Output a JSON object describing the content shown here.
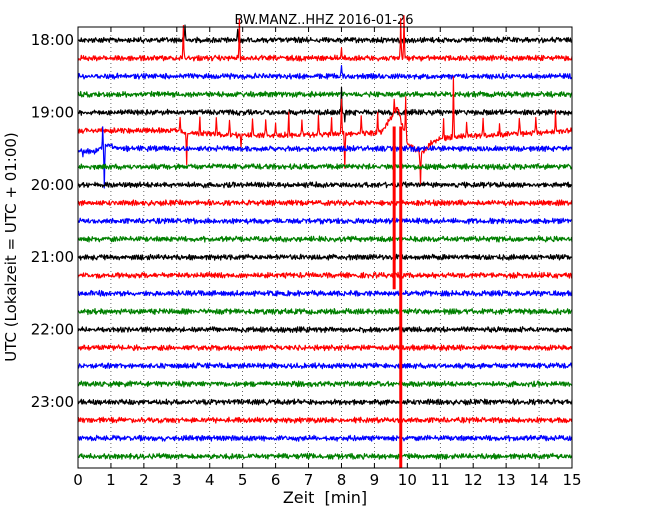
{
  "chart_data": {
    "type": "line",
    "title": "BW.MANZ..HHZ 2016-01-26",
    "xlabel": "Zeit  [min]",
    "ylabel": "UTC (Lokalzeit = UTC + 01:00)",
    "xlim": [
      0,
      15
    ],
    "x_ticks": [
      "0",
      "1",
      "2",
      "3",
      "4",
      "5",
      "6",
      "7",
      "8",
      "9",
      "10",
      "11",
      "12",
      "13",
      "14",
      "15"
    ],
    "y_ticks": [
      "18:00",
      "19:00",
      "20:00",
      "21:00",
      "22:00",
      "23:00"
    ],
    "grid": "vertical dotted",
    "trace_colors": [
      "#000000",
      "#ff0000",
      "#0000ff",
      "#008000"
    ],
    "series": [
      {
        "start": "18:00",
        "color": "#000000",
        "spikes": [
          {
            "x": 3.25,
            "dy": -14
          },
          {
            "x": 4.85,
            "dy": -12
          }
        ]
      },
      {
        "start": "18:15",
        "color": "#ff0000",
        "spikes": [
          {
            "x": 3.2,
            "dy": -34
          },
          {
            "x": 4.9,
            "dy": -36
          },
          {
            "x": 8.0,
            "dy": -12
          },
          {
            "x": 9.8,
            "dy": -40
          },
          {
            "x": 9.9,
            "dy": -40
          }
        ]
      },
      {
        "start": "18:30",
        "color": "#0000ff",
        "spikes": [
          {
            "x": 8.0,
            "dy": -10
          }
        ]
      },
      {
        "start": "18:45",
        "color": "#008000",
        "spikes": []
      },
      {
        "start": "19:00",
        "color": "#000000",
        "spikes": [
          {
            "x": 8.0,
            "dy": -24
          },
          {
            "x": 8.1,
            "dy": 10
          }
        ]
      },
      {
        "start": "19:15",
        "color": "#ff0000",
        "spikes": [
          {
            "x": 3.1,
            "dy": -14
          },
          {
            "x": 3.3,
            "dy": 30
          },
          {
            "x": 3.7,
            "dy": -14
          },
          {
            "x": 4.2,
            "dy": -18
          },
          {
            "x": 4.6,
            "dy": -14
          },
          {
            "x": 4.95,
            "dy": 10
          },
          {
            "x": 5.3,
            "dy": -16
          },
          {
            "x": 5.7,
            "dy": -18
          },
          {
            "x": 6.0,
            "dy": -14
          },
          {
            "x": 6.4,
            "dy": -20
          },
          {
            "x": 6.8,
            "dy": -14
          },
          {
            "x": 7.3,
            "dy": -18
          },
          {
            "x": 7.7,
            "dy": -16
          },
          {
            "x": 8.0,
            "dy": -36
          },
          {
            "x": 8.1,
            "dy": 34
          },
          {
            "x": 8.6,
            "dy": -16
          },
          {
            "x": 9.1,
            "dy": -18
          },
          {
            "x": 9.6,
            "dy": -14
          },
          {
            "x": 9.95,
            "dy": -40
          },
          {
            "x": 10.4,
            "dy": 30
          },
          {
            "x": 11.1,
            "dy": -18
          },
          {
            "x": 11.4,
            "dy": -60
          },
          {
            "x": 11.8,
            "dy": -14
          },
          {
            "x": 12.3,
            "dy": -18
          },
          {
            "x": 12.8,
            "dy": -12
          },
          {
            "x": 13.4,
            "dy": -18
          },
          {
            "x": 13.9,
            "dy": -14
          },
          {
            "x": 14.5,
            "dy": -20
          }
        ],
        "baseline": [
          {
            "x": 0,
            "dy": 0
          },
          {
            "x": 3.0,
            "dy": 0
          },
          {
            "x": 3.2,
            "dy": 2
          },
          {
            "x": 5.0,
            "dy": 5
          },
          {
            "x": 7.5,
            "dy": 4
          },
          {
            "x": 9.2,
            "dy": 2
          },
          {
            "x": 9.7,
            "dy": -22
          },
          {
            "x": 10.0,
            "dy": 12
          },
          {
            "x": 10.4,
            "dy": 24
          },
          {
            "x": 10.8,
            "dy": 10
          },
          {
            "x": 11.5,
            "dy": 6
          },
          {
            "x": 13.0,
            "dy": 4
          },
          {
            "x": 15,
            "dy": 0
          }
        ]
      },
      {
        "start": "19:30",
        "color": "#0000ff",
        "spikes": [
          {
            "x": 0.75,
            "dy": -20
          },
          {
            "x": 0.8,
            "dy": 42
          },
          {
            "x": 0.15,
            "dy": 6
          }
        ],
        "baseline": [
          {
            "x": 0,
            "dy": 2
          },
          {
            "x": 0.5,
            "dy": 3
          },
          {
            "x": 0.9,
            "dy": -4
          },
          {
            "x": 1.2,
            "dy": 0
          },
          {
            "x": 15,
            "dy": 0
          }
        ]
      },
      {
        "start": "19:45",
        "color": "#008000",
        "spikes": []
      },
      {
        "start": "20:00",
        "color": "#000000",
        "spikes": []
      },
      {
        "start": "20:15",
        "color": "#ff0000",
        "spikes": []
      },
      {
        "start": "20:30",
        "color": "#0000ff",
        "spikes": []
      },
      {
        "start": "20:45",
        "color": "#008000",
        "spikes": []
      },
      {
        "start": "21:00",
        "color": "#000000",
        "spikes": []
      },
      {
        "start": "21:15",
        "color": "#ff0000",
        "spikes": []
      },
      {
        "start": "21:30",
        "color": "#0000ff",
        "spikes": []
      },
      {
        "start": "21:45",
        "color": "#008000",
        "spikes": []
      },
      {
        "start": "22:00",
        "color": "#000000",
        "spikes": []
      },
      {
        "start": "22:15",
        "color": "#ff0000",
        "spikes": []
      },
      {
        "start": "22:30",
        "color": "#0000ff",
        "spikes": []
      },
      {
        "start": "22:45",
        "color": "#008000",
        "spikes": []
      },
      {
        "start": "23:00",
        "color": "#000000",
        "spikes": []
      },
      {
        "start": "23:15",
        "color": "#ff0000",
        "spikes": []
      },
      {
        "start": "23:30",
        "color": "#0000ff",
        "spikes": []
      },
      {
        "start": "23:45",
        "color": "#008000",
        "spikes": []
      }
    ],
    "events": [
      {
        "x": 9.6,
        "from": "19:15",
        "to": "21:15",
        "color": "#ff0000"
      },
      {
        "x": 9.8,
        "from": "19:15",
        "to": "23:45",
        "color": "#ff0000"
      }
    ]
  }
}
